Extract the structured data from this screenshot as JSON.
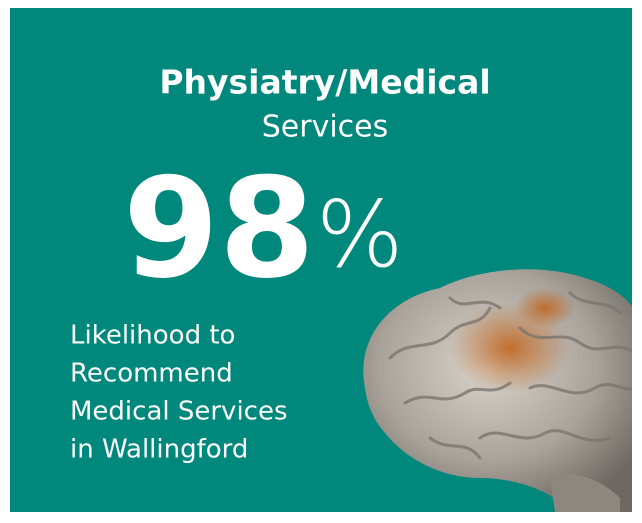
{
  "card": {
    "title": "Physiatry/Medical",
    "subtitle": "Services",
    "stat": {
      "number": "98",
      "unit": "%"
    },
    "description": [
      "Likelihood to",
      "Recommend",
      "Medical Services",
      "in Wallingford"
    ]
  }
}
